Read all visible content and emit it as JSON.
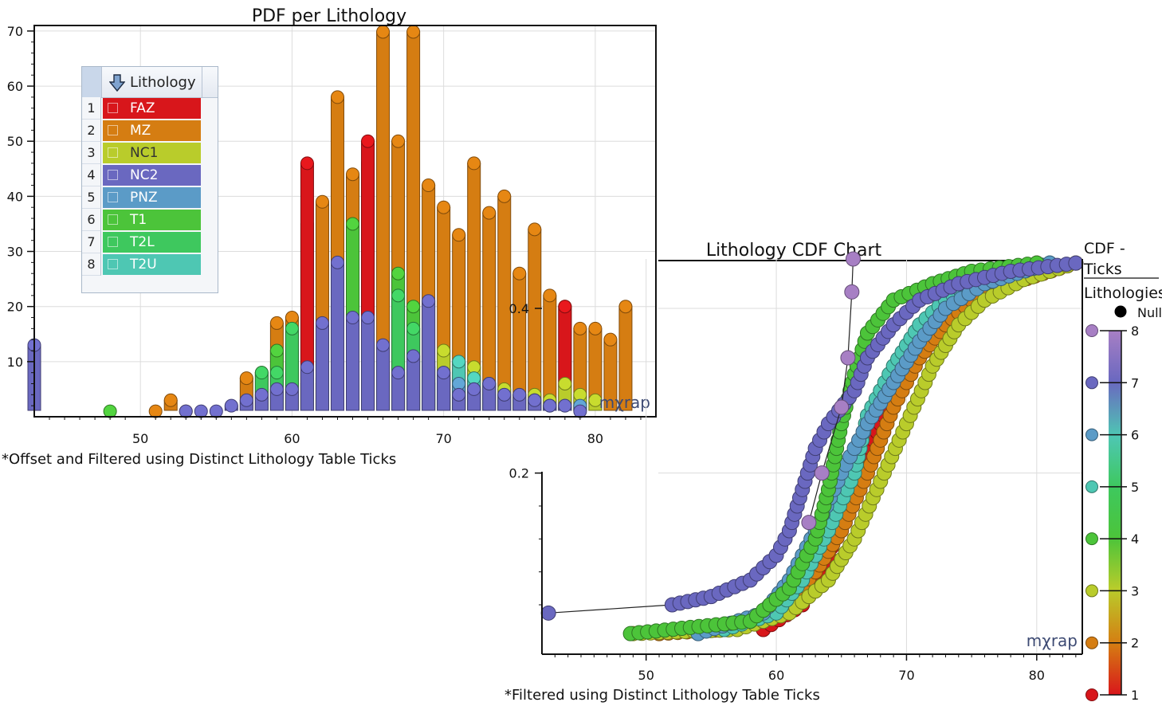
{
  "pdf_chart": {
    "title": "PDF per Lithology",
    "footnote": "*Offset and Filtered using Distinct Lithology Table Ticks",
    "watermark": "mχrap",
    "legend": {
      "title": "Lithology",
      "items": [
        {
          "index": "1",
          "name": "FAZ",
          "color": "#d8161b"
        },
        {
          "index": "2",
          "name": "MZ",
          "color": "#d57d12"
        },
        {
          "index": "3",
          "name": "NC1",
          "color": "#b9cc2b"
        },
        {
          "index": "4",
          "name": "NC2",
          "color": "#6a68c0"
        },
        {
          "index": "5",
          "name": "PNZ",
          "color": "#5b9bc7"
        },
        {
          "index": "6",
          "name": "T1",
          "color": "#4cc43a"
        },
        {
          "index": "7",
          "name": "T2L",
          "color": "#3ec85e"
        },
        {
          "index": "8",
          "name": "T2U",
          "color": "#4ec7b3"
        }
      ]
    }
  },
  "cdf_chart": {
    "title": "Lithology CDF Chart",
    "footnote": "*Filtered using Distinct Lithology Table Ticks",
    "watermark": "mχrap",
    "legend_title_1": "CDF -",
    "legend_title_2": "Ticks",
    "legend_title_3": "Lithologies",
    "null_label": "Null"
  },
  "chart_data": [
    {
      "type": "scatter",
      "title": "PDF per Lithology",
      "xlabel": "",
      "ylabel": "",
      "xlim": [
        43,
        84
      ],
      "ylim": [
        0,
        71
      ],
      "xticks": [
        "50",
        "60",
        "70",
        "80"
      ],
      "yticks": [
        "10",
        "20",
        "30",
        "40",
        "50",
        "60",
        "70"
      ],
      "note": "stacked dot histogram; value = count per 1-unit bin",
      "series": [
        {
          "name": "MZ",
          "color": "#d57d12",
          "bins": [
            [
              51,
              1
            ],
            [
              52,
              3
            ],
            [
              53,
              1
            ],
            [
              57,
              7
            ],
            [
              58,
              8
            ],
            [
              59,
              17
            ],
            [
              60,
              18
            ],
            [
              61,
              35
            ],
            [
              62,
              39
            ],
            [
              63,
              58
            ],
            [
              64,
              44
            ],
            [
              65,
              46
            ],
            [
              66,
              71
            ],
            [
              67,
              50
            ],
            [
              68,
              71
            ],
            [
              69,
              42
            ],
            [
              70,
              38
            ],
            [
              71,
              33
            ],
            [
              72,
              46
            ],
            [
              73,
              37
            ],
            [
              74,
              40
            ],
            [
              75,
              26
            ],
            [
              76,
              34
            ],
            [
              77,
              22
            ],
            [
              78,
              20
            ],
            [
              79,
              16
            ],
            [
              80,
              16
            ],
            [
              81,
              14
            ],
            [
              82,
              20
            ]
          ]
        },
        {
          "name": "FAZ",
          "color": "#d8161b",
          "bins": [
            [
              61,
              46
            ],
            [
              62,
              6
            ],
            [
              65,
              50
            ],
            [
              78,
              20
            ]
          ]
        },
        {
          "name": "T1",
          "color": "#4cc43a",
          "bins": [
            [
              48,
              1
            ],
            [
              59,
              12
            ],
            [
              60,
              12
            ],
            [
              61,
              6
            ],
            [
              62,
              14
            ],
            [
              63,
              20
            ],
            [
              64,
              35
            ],
            [
              65,
              13
            ],
            [
              66,
              8
            ],
            [
              67,
              26
            ],
            [
              68,
              20
            ],
            [
              69,
              9
            ],
            [
              70,
              4
            ]
          ]
        },
        {
          "name": "T2L",
          "color": "#3ec85e",
          "bins": [
            [
              58,
              8
            ],
            [
              59,
              8
            ],
            [
              60,
              16
            ],
            [
              61,
              8
            ],
            [
              62,
              7
            ],
            [
              63,
              13
            ],
            [
              65,
              15
            ],
            [
              66,
              10
            ],
            [
              67,
              22
            ],
            [
              68,
              16
            ],
            [
              69,
              10
            ]
          ]
        },
        {
          "name": "NC1",
          "color": "#b9cc2b",
          "bins": [
            [
              70,
              12
            ],
            [
              71,
              8
            ],
            [
              72,
              9
            ],
            [
              73,
              6
            ],
            [
              74,
              5
            ],
            [
              75,
              4
            ],
            [
              76,
              4
            ],
            [
              77,
              3
            ],
            [
              78,
              6
            ],
            [
              79,
              4
            ],
            [
              80,
              3
            ]
          ]
        },
        {
          "name": "T2U",
          "color": "#4ec7b3",
          "bins": [
            [
              70,
              8
            ],
            [
              71,
              10
            ],
            [
              72,
              7
            ],
            [
              73,
              6
            ],
            [
              74,
              4
            ],
            [
              75,
              3
            ],
            [
              76,
              3
            ],
            [
              77,
              2
            ],
            [
              78,
              2
            ]
          ]
        },
        {
          "name": "PNZ",
          "color": "#5b9bc7",
          "bins": [
            [
              69,
              6
            ],
            [
              70,
              7
            ],
            [
              71,
              6
            ],
            [
              72,
              5
            ],
            [
              73,
              4
            ],
            [
              74,
              3
            ],
            [
              76,
              3
            ],
            [
              77,
              2
            ],
            [
              79,
              2
            ]
          ]
        },
        {
          "name": "NC2",
          "color": "#6a68c0",
          "bins": [
            [
              43,
              13
            ],
            [
              53,
              1
            ],
            [
              54,
              1
            ],
            [
              55,
              1
            ],
            [
              56,
              2
            ],
            [
              57,
              3
            ],
            [
              58,
              4
            ],
            [
              59,
              5
            ],
            [
              60,
              5
            ],
            [
              61,
              9
            ],
            [
              62,
              17
            ],
            [
              63,
              28
            ],
            [
              64,
              18
            ],
            [
              65,
              18
            ],
            [
              66,
              13
            ],
            [
              67,
              8
            ],
            [
              68,
              11
            ],
            [
              69,
              21
            ],
            [
              70,
              8
            ],
            [
              71,
              4
            ],
            [
              72,
              5
            ],
            [
              73,
              6
            ],
            [
              74,
              4
            ],
            [
              75,
              4
            ],
            [
              76,
              3
            ],
            [
              77,
              2
            ],
            [
              78,
              2
            ],
            [
              79,
              1
            ]
          ]
        }
      ]
    },
    {
      "type": "line",
      "title": "Lithology CDF Chart",
      "xlabel": "",
      "ylabel": "",
      "xlim": [
        42,
        83.5
      ],
      "ylim": [
        -0.02,
        0.46
      ],
      "xticks": [
        "50",
        "60",
        "70",
        "80"
      ],
      "yticks": [
        "0.2",
        "0.4"
      ],
      "note": "cumulative distribution per lithology, dots on curves; color scale 1-8",
      "series": [
        {
          "name": "FAZ (1)",
          "color": "#d8161b",
          "points": [
            [
              59,
              0.01
            ],
            [
              62,
              0.04
            ],
            [
              64,
              0.1
            ],
            [
              66,
              0.18
            ],
            [
              68,
              0.26
            ],
            [
              70,
              0.34
            ],
            [
              72,
              0.39
            ],
            [
              74,
              0.42
            ],
            [
              76,
              0.44
            ],
            [
              80,
              0.455
            ]
          ]
        },
        {
          "name": "MZ (2)",
          "color": "#d57d12",
          "points": [
            [
              51,
              0.005
            ],
            [
              56,
              0.01
            ],
            [
              60,
              0.03
            ],
            [
              63,
              0.08
            ],
            [
              65,
              0.13
            ],
            [
              67,
              0.2
            ],
            [
              69,
              0.28
            ],
            [
              71,
              0.34
            ],
            [
              73,
              0.38
            ],
            [
              75,
              0.41
            ],
            [
              78,
              0.43
            ],
            [
              83,
              0.455
            ]
          ]
        },
        {
          "name": "NC1 (3)",
          "color": "#b9cc2b",
          "points": [
            [
              49,
              0.005
            ],
            [
              57,
              0.01
            ],
            [
              61,
              0.03
            ],
            [
              64,
              0.07
            ],
            [
              66,
              0.12
            ],
            [
              68,
              0.19
            ],
            [
              70,
              0.26
            ],
            [
              72,
              0.33
            ],
            [
              74,
              0.38
            ],
            [
              76,
              0.41
            ],
            [
              79,
              0.435
            ],
            [
              83,
              0.455
            ]
          ]
        },
        {
          "name": "T1 (4)",
          "color": "#4cc43a",
          "points": [
            [
              48.8,
              0.005
            ],
            [
              58,
              0.02
            ],
            [
              61,
              0.06
            ],
            [
              63,
              0.12
            ],
            [
              64,
              0.18
            ],
            [
              65,
              0.26
            ],
            [
              66,
              0.32
            ],
            [
              67,
              0.37
            ],
            [
              69,
              0.41
            ],
            [
              72,
              0.43
            ],
            [
              75,
              0.445
            ],
            [
              80,
              0.455
            ]
          ]
        },
        {
          "name": "T2U (5)",
          "color": "#4ec7b3",
          "points": [
            [
              56,
              0.01
            ],
            [
              60,
              0.03
            ],
            [
              62,
              0.07
            ],
            [
              64,
              0.13
            ],
            [
              66,
              0.2
            ],
            [
              67,
              0.27
            ],
            [
              69,
              0.33
            ],
            [
              71,
              0.38
            ],
            [
              73,
              0.41
            ],
            [
              76,
              0.435
            ],
            [
              81,
              0.455
            ]
          ]
        },
        {
          "name": "PNZ (6)",
          "color": "#5b9bc7",
          "points": [
            [
              54,
              0.005
            ],
            [
              59,
              0.03
            ],
            [
              61,
              0.07
            ],
            [
              63,
              0.13
            ],
            [
              65,
              0.2
            ],
            [
              67,
              0.26
            ],
            [
              69,
              0.31
            ],
            [
              71,
              0.36
            ],
            [
              73,
              0.4
            ],
            [
              76,
              0.43
            ],
            [
              81,
              0.455
            ]
          ]
        },
        {
          "name": "NC2 (7)",
          "color": "#6a68c0",
          "points": [
            [
              42.5,
              0.03
            ],
            [
              52,
              0.04
            ],
            [
              55,
              0.05
            ],
            [
              58,
              0.07
            ],
            [
              60,
              0.1
            ],
            [
              61,
              0.13
            ],
            [
              62,
              0.18
            ],
            [
              63,
              0.23
            ],
            [
              64,
              0.26
            ],
            [
              66,
              0.3
            ],
            [
              67,
              0.34
            ],
            [
              69,
              0.38
            ],
            [
              71,
              0.41
            ],
            [
              74,
              0.43
            ],
            [
              78,
              0.445
            ],
            [
              83,
              0.455
            ]
          ]
        },
        {
          "name": "T2L (8)",
          "color": "#a77fc4",
          "points": [
            [
              62.5,
              0.14
            ],
            [
              63.5,
              0.2
            ],
            [
              65,
              0.28
            ],
            [
              65.5,
              0.34
            ],
            [
              65.8,
              0.42
            ],
            [
              65.9,
              0.46
            ]
          ]
        }
      ]
    }
  ],
  "color_scale": {
    "ticks": [
      "1",
      "2",
      "3",
      "4",
      "5",
      "6",
      "7",
      "8"
    ],
    "colors": [
      "#d8161b",
      "#d57d12",
      "#b9cc2b",
      "#4cc43a",
      "#3ec85e",
      "#4ec7b3",
      "#5b9bc7",
      "#6a68c0",
      "#a77fc4"
    ]
  }
}
